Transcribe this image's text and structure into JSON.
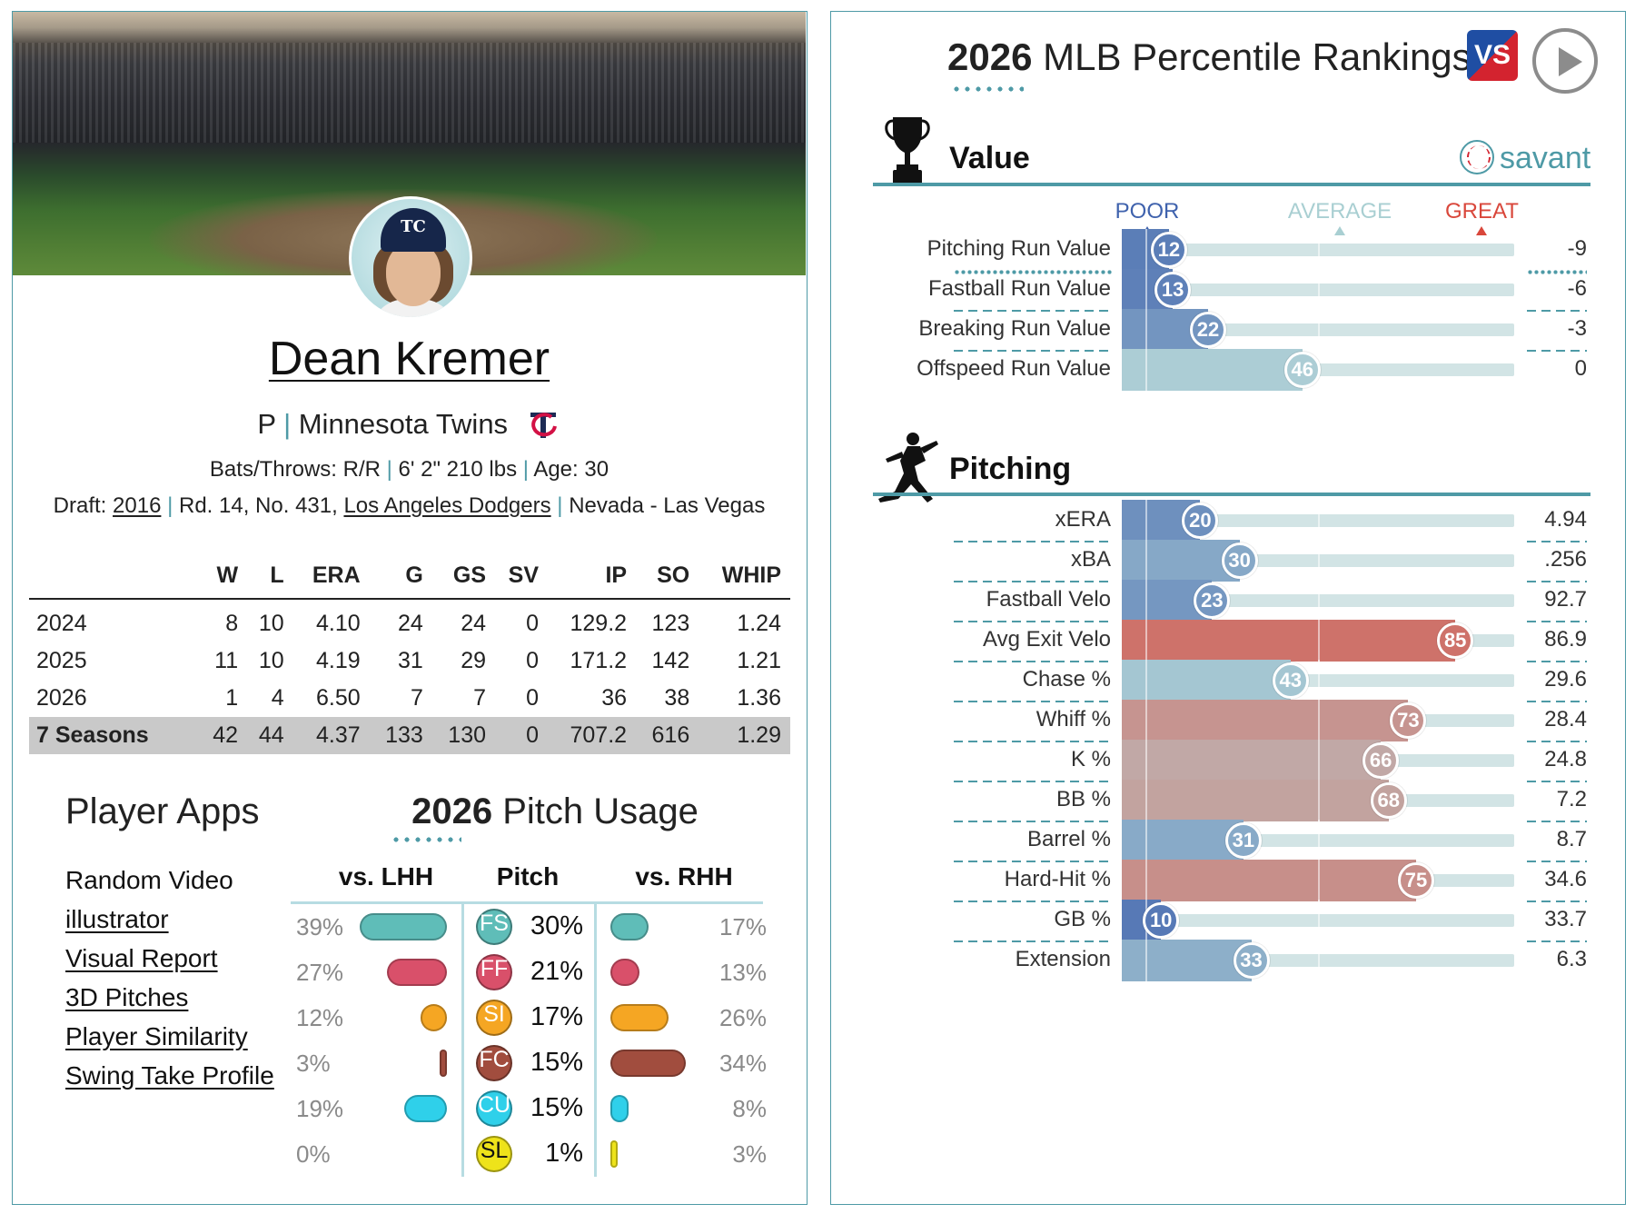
{
  "player": {
    "name": "Dean Kremer",
    "position": "P",
    "team": "Minnesota Twins",
    "bats_throws_label": "Bats/Throws: R/R",
    "size": "6' 2\" 210 lbs",
    "age_label": "Age: 30",
    "draft_prefix": "Draft:",
    "draft_year": "2016",
    "draft_round": "Rd. 14, No. 431,",
    "draft_team": "Los Angeles Dodgers",
    "school": "Nevada - Las Vegas",
    "cap_logo": "TC"
  },
  "stats_table": {
    "columns": [
      "",
      "W",
      "L",
      "ERA",
      "G",
      "GS",
      "SV",
      "IP",
      "SO",
      "WHIP"
    ],
    "rows": [
      [
        "2024",
        "8",
        "10",
        "4.10",
        "24",
        "24",
        "0",
        "129.2",
        "123",
        "1.24"
      ],
      [
        "2025",
        "11",
        "10",
        "4.19",
        "31",
        "29",
        "0",
        "171.2",
        "142",
        "1.21"
      ],
      [
        "2026",
        "1",
        "4",
        "6.50",
        "7",
        "7",
        "0",
        "36",
        "38",
        "1.36"
      ],
      [
        "7 Seasons",
        "42",
        "44",
        "4.37",
        "133",
        "130",
        "0",
        "707.2",
        "616",
        "1.29"
      ]
    ]
  },
  "player_apps": {
    "title": "Player Apps",
    "items": [
      "Random Video",
      "illustrator",
      "Visual Report",
      "3D Pitches",
      "Player Similarity",
      "Swing Take Profile"
    ]
  },
  "pitch_usage": {
    "year": "2026",
    "title": "Pitch Usage",
    "headers": {
      "lhh": "vs. LHH",
      "pitch": "Pitch",
      "rhh": "vs. RHH"
    },
    "rows": [
      {
        "code": "FS",
        "color": "#5fbdb8",
        "lhh": "39%",
        "lhh_v": 39,
        "overall": "30%",
        "rhh": "17%",
        "rhh_v": 17
      },
      {
        "code": "FF",
        "color": "#d9506a",
        "lhh": "27%",
        "lhh_v": 27,
        "overall": "21%",
        "rhh": "13%",
        "rhh_v": 13
      },
      {
        "code": "SI",
        "color": "#f5a623",
        "lhh": "12%",
        "lhh_v": 12,
        "overall": "17%",
        "rhh": "26%",
        "rhh_v": 26
      },
      {
        "code": "FC",
        "color": "#a14d3e",
        "lhh": "3%",
        "lhh_v": 3,
        "overall": "15%",
        "rhh": "34%",
        "rhh_v": 34
      },
      {
        "code": "CU",
        "color": "#2fd0ea",
        "lhh": "19%",
        "lhh_v": 19,
        "overall": "15%",
        "rhh": "8%",
        "rhh_v": 8
      },
      {
        "code": "SL",
        "color": "#eee31a",
        "lhh": "0%",
        "lhh_v": 0,
        "overall": "1%",
        "rhh": "3%",
        "rhh_v": 3
      }
    ]
  },
  "percentiles": {
    "year": "2026",
    "title": "MLB Percentile Rankings",
    "vs_logo": "VS",
    "savant_label": "savant",
    "scale": {
      "poor": "POOR",
      "average": "AVERAGE",
      "great": "GREAT"
    },
    "sections": [
      {
        "title": "Value",
        "metrics": [
          {
            "name": "Pitching Run Value",
            "pct": 12,
            "value": "-9"
          },
          {
            "name": "Fastball Run Value",
            "pct": 13,
            "value": "-6"
          },
          {
            "name": "Breaking Run Value",
            "pct": 22,
            "value": "-3"
          },
          {
            "name": "Offspeed Run Value",
            "pct": 46,
            "value": "0"
          }
        ]
      },
      {
        "title": "Pitching",
        "metrics": [
          {
            "name": "xERA",
            "pct": 20,
            "value": "4.94"
          },
          {
            "name": "xBA",
            "pct": 30,
            "value": ".256"
          },
          {
            "name": "Fastball Velo",
            "pct": 23,
            "value": "92.7"
          },
          {
            "name": "Avg Exit Velo",
            "pct": 85,
            "value": "86.9"
          },
          {
            "name": "Chase %",
            "pct": 43,
            "value": "29.6"
          },
          {
            "name": "Whiff %",
            "pct": 73,
            "value": "28.4"
          },
          {
            "name": "K %",
            "pct": 66,
            "value": "24.8"
          },
          {
            "name": "BB %",
            "pct": 68,
            "value": "7.2"
          },
          {
            "name": "Barrel %",
            "pct": 31,
            "value": "8.7"
          },
          {
            "name": "Hard-Hit %",
            "pct": 75,
            "value": "34.6"
          },
          {
            "name": "GB %",
            "pct": 10,
            "value": "33.7"
          },
          {
            "name": "Extension",
            "pct": 33,
            "value": "6.3"
          }
        ]
      }
    ],
    "colors": {
      "poor": "#3f62ad",
      "average": "#b5d6d8",
      "great": "#d9473b",
      "accent": "#4e9aa6"
    }
  }
}
